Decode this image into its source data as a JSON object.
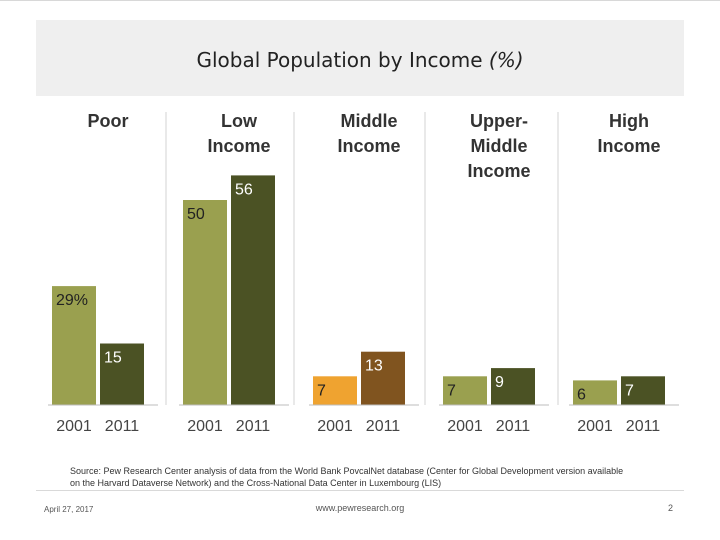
{
  "slide": {
    "title_main": "Global Population by Income ",
    "title_unit": "(%)",
    "source": "Source: Pew Research Center analysis of data from the World Bank PovcalNet database (Center for Global Development version available on the Harvard Dataverse Network) and the Cross-National Data Center in Luxembourg (LIS)",
    "date": "April 27, 2017",
    "url": "www.pewresearch.org",
    "page": "2"
  },
  "chart_data": {
    "type": "bar",
    "title": "Global Population by Income (%)",
    "groups": [
      {
        "label": "Poor",
        "values": [
          29,
          15
        ],
        "labels": [
          "29%",
          "15"
        ],
        "colors": [
          "#9aa04f",
          "#4b5224"
        ]
      },
      {
        "label": "Low Income",
        "values": [
          50,
          56
        ],
        "labels": [
          "50",
          "56"
        ],
        "colors": [
          "#9aa04f",
          "#4b5224"
        ]
      },
      {
        "label": "Middle Income",
        "values": [
          7,
          13
        ],
        "labels": [
          "7",
          "13"
        ],
        "colors": [
          "#efa330",
          "#80541f"
        ]
      },
      {
        "label": "Upper-Middle Income",
        "values": [
          7,
          9
        ],
        "labels": [
          "7",
          "9"
        ],
        "colors": [
          "#9aa04f",
          "#4b5224"
        ]
      },
      {
        "label": "High Income",
        "values": [
          6,
          7
        ],
        "labels": [
          "6",
          "7"
        ],
        "colors": [
          "#9aa04f",
          "#4b5224"
        ]
      }
    ],
    "categories": [
      "2001",
      "2011"
    ],
    "ylim": [
      0,
      60
    ],
    "label_color_dark_text": "#222222",
    "label_color_light_text": "#ffffff"
  }
}
